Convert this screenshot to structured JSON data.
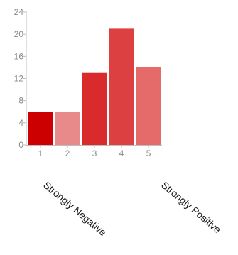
{
  "chart_data": {
    "type": "bar",
    "categories": [
      "1",
      "2",
      "3",
      "4",
      "5"
    ],
    "values": [
      6,
      6,
      13,
      21,
      14
    ],
    "ylim": [
      0,
      24
    ],
    "yticks": [
      0,
      4,
      8,
      12,
      16,
      20,
      24
    ],
    "grid": false,
    "legend": "none",
    "bar_colors": [
      "#cc0000",
      "#e88a8a",
      "#d92b2b",
      "#dd4040",
      "#e56a6a"
    ],
    "anchor_labels": {
      "low": "Strongly Negative",
      "high": "Strongly Positive"
    }
  }
}
